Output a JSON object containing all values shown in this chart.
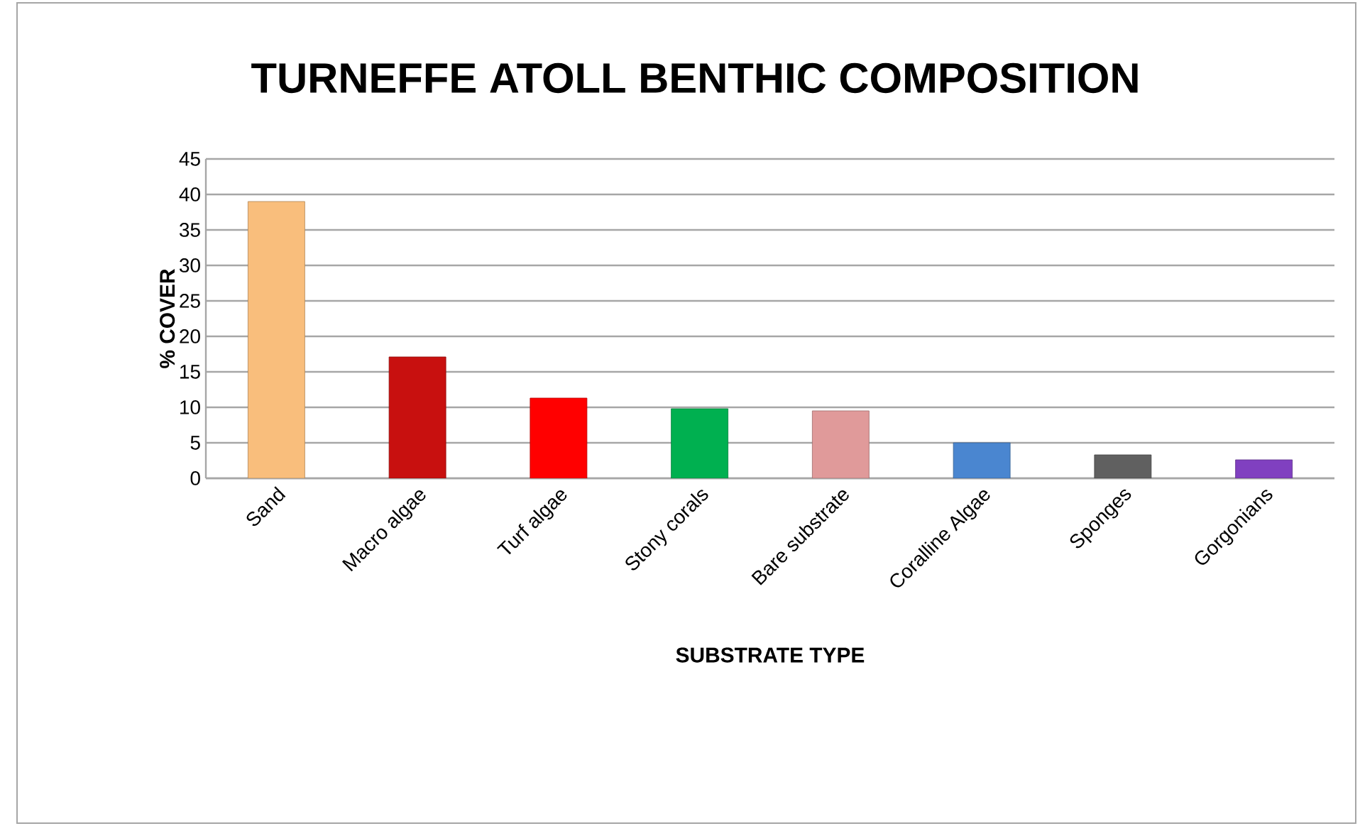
{
  "chart_data": {
    "type": "bar",
    "title": "TURNEFFE ATOLL BENTHIC COMPOSITION",
    "xlabel": "SUBSTRATE TYPE",
    "ylabel": "% COVER",
    "categories": [
      "Sand",
      "Macro algae",
      "Turf algae",
      "Stony corals",
      "Bare substrate",
      "Coralline Algae",
      "Sponges",
      "Gorgonians"
    ],
    "values": [
      39.0,
      17.1,
      11.3,
      9.8,
      9.5,
      5.0,
      3.3,
      2.6
    ],
    "colors": [
      "#f9be7c",
      "#c8100f",
      "#ff0000",
      "#00b050",
      "#e09a9a",
      "#4a86d0",
      "#606060",
      "#8040c0"
    ],
    "ylim": [
      0,
      45
    ],
    "yticks": [
      0,
      5,
      10,
      15,
      20,
      25,
      30,
      35,
      40,
      45
    ],
    "grid": "y"
  }
}
